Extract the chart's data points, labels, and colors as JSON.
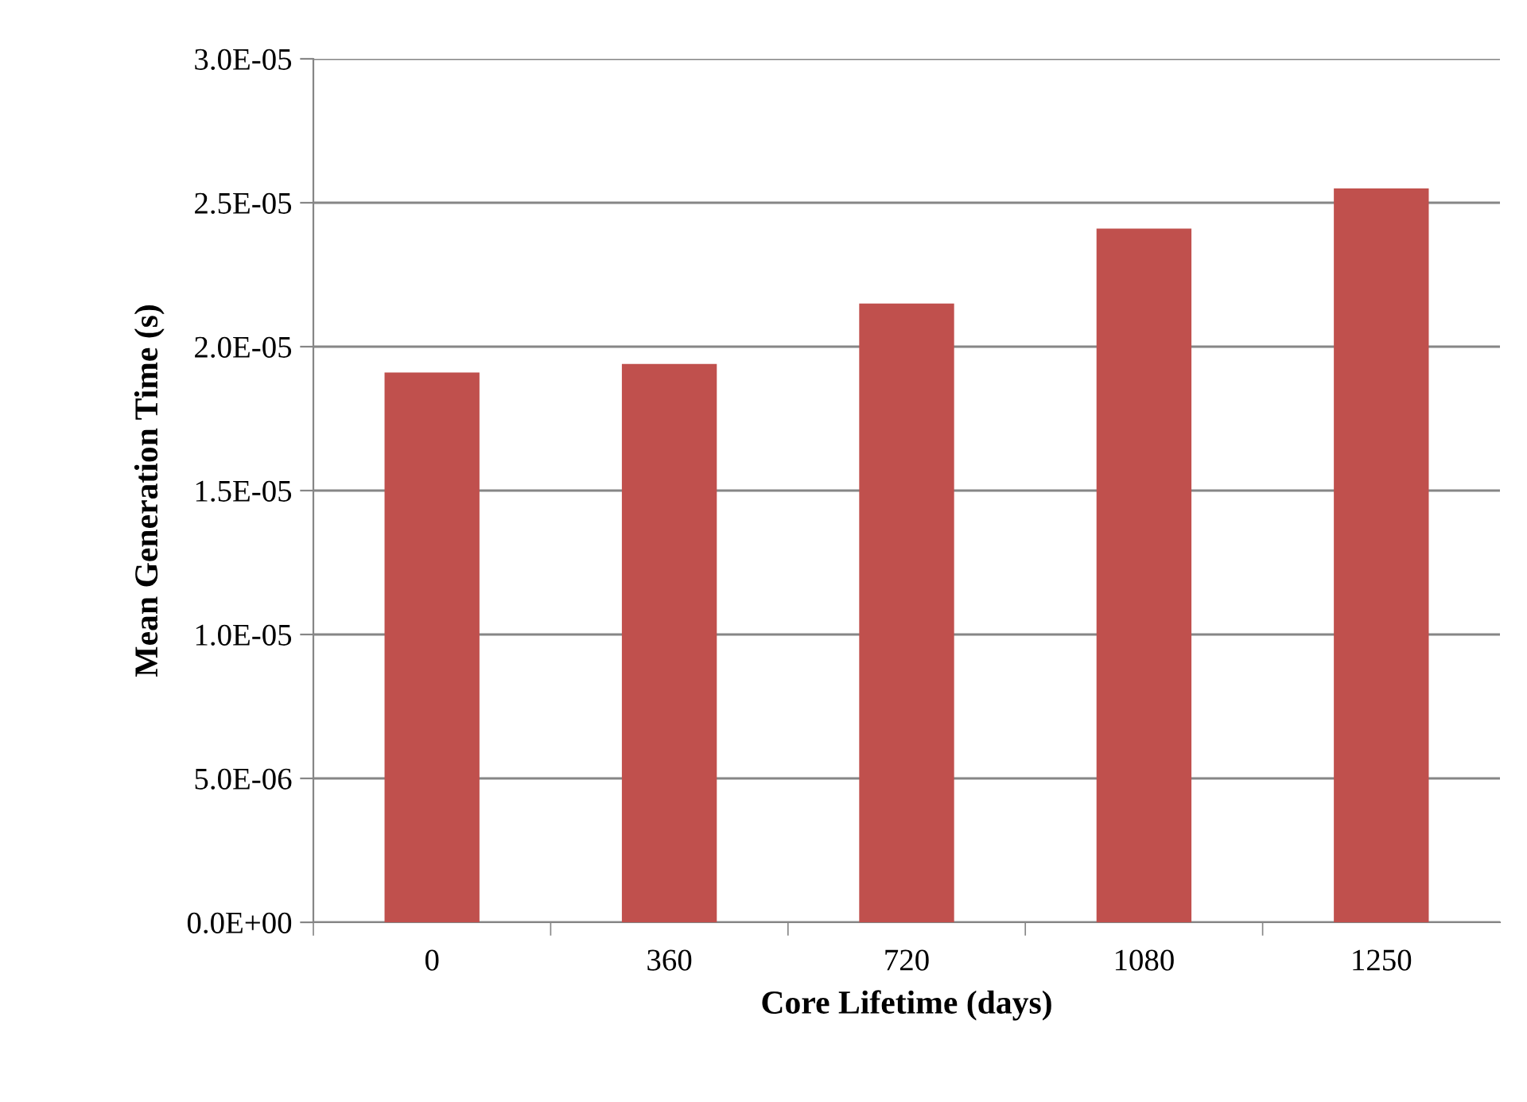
{
  "chart_data": {
    "type": "bar",
    "xlabel": "Core Lifetime (days)",
    "ylabel": "Mean Generation Time (s)",
    "categories": [
      "0",
      "360",
      "720",
      "1080",
      "1250"
    ],
    "values": [
      1.91e-05,
      1.94e-05,
      2.15e-05,
      2.41e-05,
      2.55e-05
    ],
    "color": "#c0504d",
    "ylim": [
      0,
      3e-05
    ],
    "yticks": [
      {
        "value": 0,
        "label": "0.0E+00"
      },
      {
        "value": 5e-06,
        "label": "5.0E-06"
      },
      {
        "value": 1e-05,
        "label": "1.0E-05"
      },
      {
        "value": 1.5e-05,
        "label": "1.5E-05"
      },
      {
        "value": 2e-05,
        "label": "2.0E-05"
      },
      {
        "value": 2.5e-05,
        "label": "2.5E-05"
      },
      {
        "value": 3e-05,
        "label": "3.0E-05"
      }
    ],
    "grid": "y",
    "legend": false
  }
}
